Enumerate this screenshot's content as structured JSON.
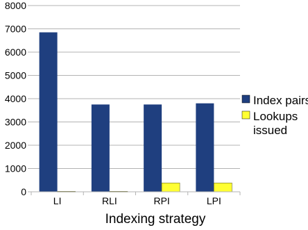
{
  "chart_data": {
    "type": "bar",
    "title": "",
    "xlabel": "Indexing strategy",
    "ylabel": "",
    "categories": [
      "LI",
      "RLI",
      "RPI",
      "LPI"
    ],
    "series": [
      {
        "name": "Index pairs",
        "color": "#1f3f7f",
        "values": [
          6850,
          3750,
          3750,
          3800
        ]
      },
      {
        "name": "Lookups issued",
        "color": "#ffff33",
        "values": [
          20,
          20,
          380,
          380
        ]
      }
    ],
    "ylim": [
      0,
      8000
    ],
    "yticks": [
      0,
      1000,
      2000,
      3000,
      4000,
      5000,
      6000,
      7000,
      8000
    ],
    "grid": true,
    "legend_position": "right"
  }
}
